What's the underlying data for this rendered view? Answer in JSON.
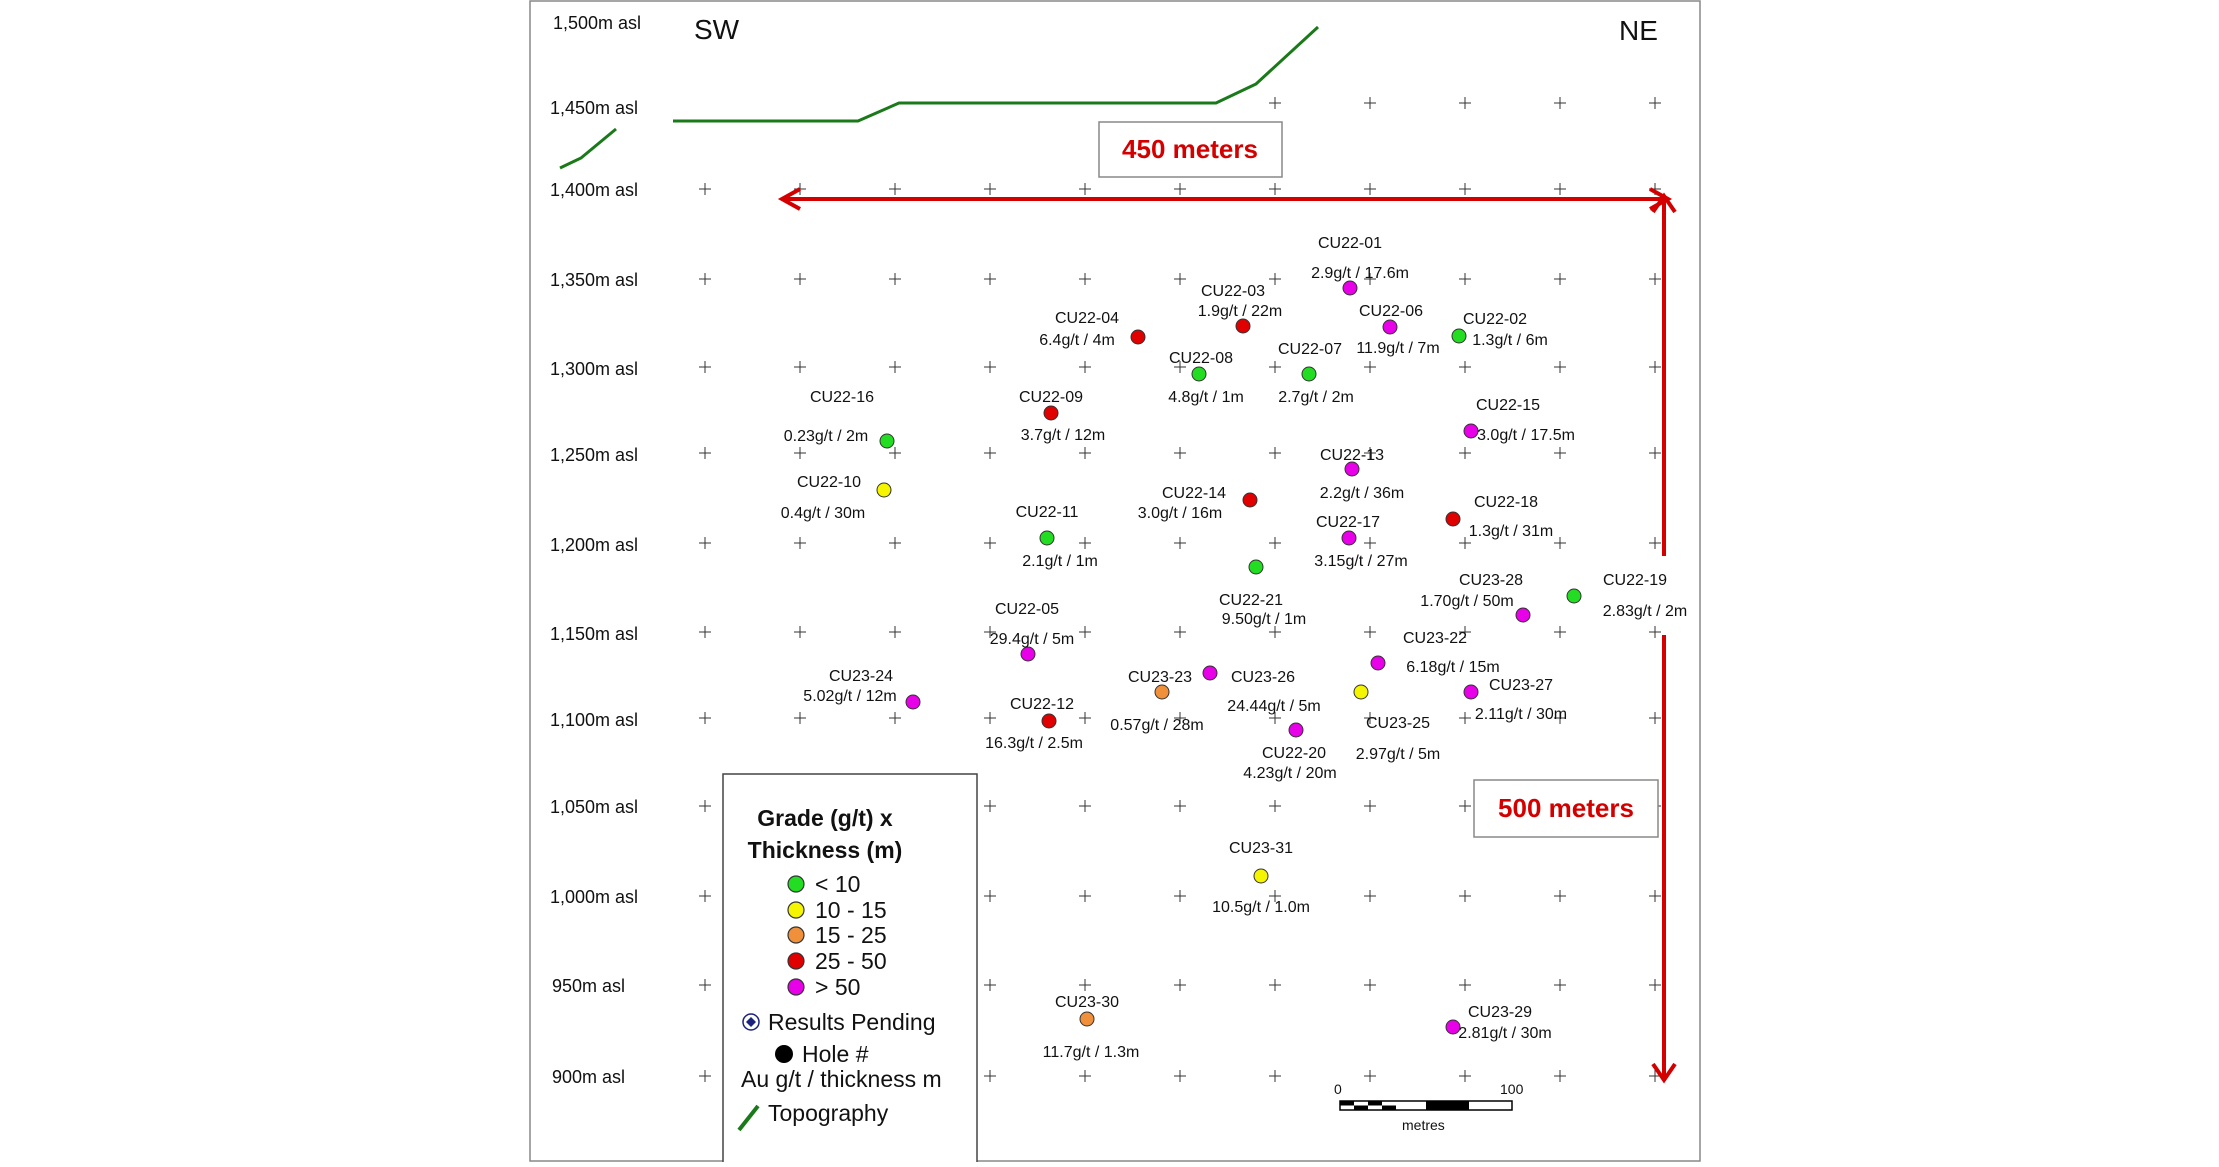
{
  "directions": {
    "left": "SW",
    "right": "NE"
  },
  "elevation_labels": [
    {
      "label": "1,500m asl",
      "value": 1500
    },
    {
      "label": "1,450m asl",
      "value": 1450
    },
    {
      "label": "1,400m asl",
      "value": 1400
    },
    {
      "label": "1,350m asl",
      "value": 1350
    },
    {
      "label": "1,300m asl",
      "value": 1300
    },
    {
      "label": "1,250m asl",
      "value": 1250
    },
    {
      "label": "1,200m asl",
      "value": 1200
    },
    {
      "label": "1,150m asl",
      "value": 1150
    },
    {
      "label": "1,100m asl",
      "value": 1100
    },
    {
      "label": "1,050m asl",
      "value": 1050
    },
    {
      "label": "1,000m asl",
      "value": 1000
    },
    {
      "label": "950m asl",
      "value": 950
    },
    {
      "label": "900m asl",
      "value": 900
    }
  ],
  "dimensions": {
    "horizontal": "450 meters",
    "vertical": "500 meters"
  },
  "colors": {
    "lt10": "#22dd22",
    "10_15": "#f5f500",
    "15_25": "#f0903a",
    "25_50": "#e00000",
    "gt50": "#e800e8",
    "topography": "#1a7a1a",
    "dimension": "#d40000"
  },
  "holes": [
    {
      "id": "CU22-01",
      "result": "2.9g/t / 17.6m",
      "class": "gt50"
    },
    {
      "id": "CU22-02",
      "result": "1.3g/t / 6m",
      "class": "lt10"
    },
    {
      "id": "CU22-03",
      "result": "1.9g/t / 22m",
      "class": "25_50"
    },
    {
      "id": "CU22-04",
      "result": "6.4g/t / 4m",
      "class": "25_50"
    },
    {
      "id": "CU22-05",
      "result": "29.4g/t / 5m",
      "class": "gt50"
    },
    {
      "id": "CU22-06",
      "result": "11.9g/t / 7m",
      "class": "gt50"
    },
    {
      "id": "CU22-07",
      "result": "2.7g/t / 2m",
      "class": "lt10"
    },
    {
      "id": "CU22-08",
      "result": "4.8g/t / 1m",
      "class": "lt10"
    },
    {
      "id": "CU22-09",
      "result": "3.7g/t / 12m",
      "class": "25_50"
    },
    {
      "id": "CU22-10",
      "result": "0.4g/t / 30m",
      "class": "10_15"
    },
    {
      "id": "CU22-11",
      "result": "2.1g/t / 1m",
      "class": "lt10"
    },
    {
      "id": "CU22-12",
      "result": "16.3g/t / 2.5m",
      "class": "25_50"
    },
    {
      "id": "CU22-13",
      "result": "2.2g/t / 36m",
      "class": "gt50"
    },
    {
      "id": "CU22-14",
      "result": "3.0g/t / 16m",
      "class": "25_50"
    },
    {
      "id": "CU22-15",
      "result": "3.0g/t / 17.5m",
      "class": "gt50"
    },
    {
      "id": "CU22-16",
      "result": "0.23g/t / 2m",
      "class": "lt10"
    },
    {
      "id": "CU22-17",
      "result": "3.15g/t / 27m",
      "class": "gt50"
    },
    {
      "id": "CU22-18",
      "result": "1.3g/t / 31m",
      "class": "25_50"
    },
    {
      "id": "CU22-19",
      "result": "2.83g/t / 2m",
      "class": "lt10"
    },
    {
      "id": "CU22-20",
      "result": "4.23g/t / 20m",
      "class": "gt50"
    },
    {
      "id": "CU22-21",
      "result": "9.50g/t / 1m",
      "class": "lt10"
    },
    {
      "id": "CU23-22",
      "result": "6.18g/t / 15m",
      "class": "gt50"
    },
    {
      "id": "CU23-23",
      "result": "0.57g/t / 28m",
      "class": "15_25"
    },
    {
      "id": "CU23-24",
      "result": "5.02g/t / 12m",
      "class": "gt50"
    },
    {
      "id": "CU23-25",
      "result": "2.97g/t / 5m",
      "class": "10_15"
    },
    {
      "id": "CU23-26",
      "result": "24.44g/t / 5m",
      "class": "gt50"
    },
    {
      "id": "CU23-27",
      "result": "2.11g/t / 30m",
      "class": "gt50"
    },
    {
      "id": "CU23-28",
      "result": "1.70g/t / 50m",
      "class": "gt50"
    },
    {
      "id": "CU23-29",
      "result": "2.81g/t / 30m",
      "class": "gt50"
    },
    {
      "id": "CU23-30",
      "result": "11.7g/t / 1.3m",
      "class": "15_25"
    },
    {
      "id": "CU23-31",
      "result": "10.5g/t / 1.0m",
      "class": "10_15"
    }
  ],
  "legend": {
    "title_line1": "Grade (g/t) x",
    "title_line2": "Thickness (m)",
    "classes": [
      {
        "label": "< 10",
        "class": "lt10"
      },
      {
        "label": "10 - 15",
        "class": "10_15"
      },
      {
        "label": "15 - 25",
        "class": "15_25"
      },
      {
        "label": "25 - 50",
        "class": "25_50"
      },
      {
        "label": "> 50",
        "class": "gt50"
      }
    ],
    "pending": "Results Pending",
    "hole_line1": "Hole #",
    "hole_line2": "Au g/t / thickness m",
    "topography": "Topography",
    "icons": {
      "pending": "results-pending-icon",
      "hole": "hole-marker-icon",
      "topography": "topography-line-icon"
    }
  },
  "scale_bar": {
    "start": "0",
    "end": "100",
    "unit": "metres"
  }
}
